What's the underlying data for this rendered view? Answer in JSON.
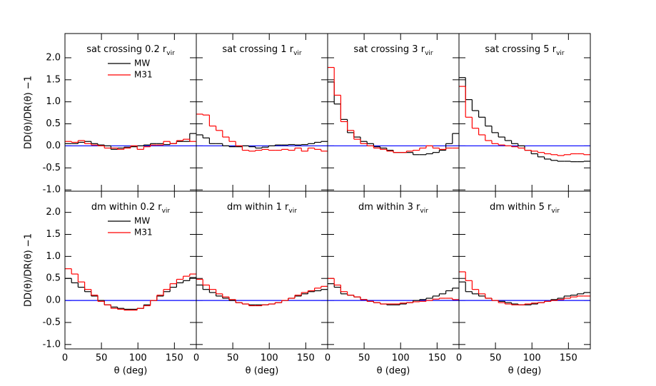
{
  "chart_data": [
    {
      "type": "histogram",
      "title": "sat crossing 0.2 r",
      "title_subscript": "vir",
      "y_label": "DD(θ)/DR(θ) −1",
      "bins": [
        0,
        9,
        18,
        27,
        36,
        45,
        54,
        63,
        72,
        81,
        90,
        99,
        108,
        117,
        126,
        135,
        144,
        153,
        162,
        171,
        180
      ],
      "series": [
        {
          "name": "MW",
          "color": "#000000",
          "values": [
            0.05,
            0.05,
            0.08,
            0.1,
            0.05,
            0.02,
            0,
            -0.08,
            -0.05,
            -0.03,
            -0.02,
            0,
            0.02,
            0.05,
            0.05,
            0.03,
            0.05,
            0.1,
            0.1,
            0.28
          ]
        },
        {
          "name": "M31",
          "color": "#ff0000",
          "values": [
            0.1,
            0.08,
            0.12,
            0.05,
            0.02,
            0,
            -0.05,
            -0.05,
            -0.08,
            -0.05,
            0,
            -0.08,
            -0.02,
            0.02,
            0.02,
            0.1,
            0.05,
            0.12,
            0.15,
            0.1
          ]
        }
      ],
      "reference_line": 0,
      "reference_color": "#0000ff",
      "xlim": [
        0,
        180
      ],
      "xticks": [
        0,
        50,
        100,
        150
      ],
      "ylim": [
        -1.03,
        2.55
      ],
      "yticks": [
        {
          "value": -1,
          "label": "-1.0"
        },
        {
          "value": -0.5,
          "label": "-0.5"
        },
        {
          "value": 0,
          "label": "0.0"
        },
        {
          "value": 0.5,
          "label": "0.5"
        },
        {
          "value": 1,
          "label": "1.0"
        },
        {
          "value": 1.5,
          "label": "1.5"
        },
        {
          "value": 2,
          "label": "2.0"
        }
      ]
    },
    {
      "type": "histogram",
      "title": "sat crossing 1 r",
      "title_subscript": "vir",
      "bins": [
        0,
        9,
        18,
        27,
        36,
        45,
        54,
        63,
        72,
        81,
        90,
        99,
        108,
        117,
        126,
        135,
        144,
        153,
        162,
        171,
        180
      ],
      "series": [
        {
          "color": "#000000",
          "values": [
            0.25,
            0.18,
            0.05,
            0.05,
            0,
            -0.02,
            -0.02,
            0,
            -0.02,
            -0.05,
            -0.03,
            0,
            0.02,
            0.02,
            0.03,
            0.02,
            0.03,
            0.05,
            0.08,
            0.1
          ]
        },
        {
          "color": "#ff0000",
          "values": [
            0.72,
            0.7,
            0.45,
            0.35,
            0.2,
            0.1,
            0,
            -0.1,
            -0.12,
            -0.1,
            -0.08,
            -0.1,
            -0.1,
            -0.08,
            -0.1,
            -0.05,
            -0.12,
            -0.05,
            -0.08,
            -0.12
          ]
        }
      ],
      "reference_line": 0,
      "reference_color": "#0000ff",
      "xlim": [
        0,
        180
      ],
      "xticks": [
        0,
        50,
        100,
        150
      ],
      "ylim": [
        -1.03,
        2.55
      ],
      "yticks": [
        -1,
        -0.5,
        0,
        0.5,
        1,
        1.5,
        2
      ]
    },
    {
      "type": "histogram",
      "title": "sat crossing 3 r",
      "title_subscript": "vir",
      "bins": [
        0,
        9,
        18,
        27,
        36,
        45,
        54,
        63,
        72,
        81,
        90,
        99,
        108,
        117,
        126,
        135,
        144,
        153,
        162,
        171,
        180
      ],
      "series": [
        {
          "color": "#000000",
          "values": [
            1.45,
            0.95,
            0.6,
            0.3,
            0.2,
            0.1,
            0.05,
            -0.02,
            -0.05,
            -0.1,
            -0.15,
            -0.15,
            -0.15,
            -0.2,
            -0.2,
            -0.18,
            -0.15,
            -0.1,
            0.05,
            0.28
          ]
        },
        {
          "color": "#ff0000",
          "values": [
            1.78,
            1.15,
            0.55,
            0.35,
            0.15,
            0.05,
            0,
            -0.05,
            -0.08,
            -0.12,
            -0.15,
            -0.15,
            -0.12,
            -0.1,
            -0.05,
            0,
            -0.05,
            -0.08,
            -0.05,
            -0.05
          ]
        }
      ],
      "reference_line": 0,
      "reference_color": "#0000ff",
      "xlim": [
        0,
        180
      ],
      "xticks": [
        0,
        50,
        100,
        150
      ],
      "ylim": [
        -1.03,
        2.55
      ],
      "yticks": [
        -1,
        -0.5,
        0,
        0.5,
        1,
        1.5,
        2
      ]
    },
    {
      "type": "histogram",
      "title": "sat crossing 5 r",
      "title_subscript": "vir",
      "bins": [
        0,
        9,
        18,
        27,
        36,
        45,
        54,
        63,
        72,
        81,
        90,
        99,
        108,
        117,
        126,
        135,
        144,
        153,
        162,
        171,
        180
      ],
      "series": [
        {
          "color": "#000000",
          "values": [
            1.55,
            1.05,
            0.8,
            0.65,
            0.45,
            0.3,
            0.2,
            0.12,
            0.05,
            0,
            -0.1,
            -0.18,
            -0.25,
            -0.3,
            -0.33,
            -0.35,
            -0.35,
            -0.36,
            -0.36,
            -0.35
          ]
        },
        {
          "color": "#ff0000",
          "values": [
            1.35,
            0.65,
            0.4,
            0.25,
            0.12,
            0.05,
            0.02,
            0,
            -0.02,
            -0.05,
            -0.1,
            -0.12,
            -0.15,
            -0.18,
            -0.2,
            -0.22,
            -0.2,
            -0.18,
            -0.18,
            -0.2
          ]
        }
      ],
      "reference_line": 0,
      "reference_color": "#0000ff",
      "xlim": [
        0,
        180
      ],
      "xticks": [
        0,
        50,
        100,
        150
      ],
      "ylim": [
        -1.03,
        2.55
      ],
      "yticks": [
        -1,
        -0.5,
        0,
        0.5,
        1,
        1.5,
        2
      ]
    },
    {
      "type": "histogram",
      "title": "dm within 0.2 r",
      "title_subscript": "vir",
      "y_label": "DD(θ)/DR(θ) −1",
      "x_label": "θ (deg)",
      "bins": [
        0,
        9,
        18,
        27,
        36,
        45,
        54,
        63,
        72,
        81,
        90,
        99,
        108,
        117,
        126,
        135,
        144,
        153,
        162,
        171,
        180
      ],
      "series": [
        {
          "name": "MW",
          "color": "#000000",
          "values": [
            0.5,
            0.4,
            0.3,
            0.2,
            0.1,
            0,
            -0.1,
            -0.15,
            -0.18,
            -0.2,
            -0.2,
            -0.18,
            -0.1,
            0,
            0.1,
            0.2,
            0.3,
            0.4,
            0.45,
            0.52
          ]
        },
        {
          "name": "M31",
          "color": "#ff0000",
          "values": [
            0.72,
            0.6,
            0.42,
            0.25,
            0.12,
            -0.02,
            -0.1,
            -0.18,
            -0.2,
            -0.22,
            -0.22,
            -0.18,
            -0.12,
            0,
            0.12,
            0.25,
            0.38,
            0.48,
            0.55,
            0.6
          ]
        }
      ],
      "reference_line": 0,
      "reference_color": "#0000ff",
      "xlim": [
        0,
        180
      ],
      "xticks": [
        0,
        50,
        100,
        150
      ],
      "ylim": [
        -1.1,
        2.48
      ],
      "yticks": [
        {
          "value": -1,
          "label": "-1.0"
        },
        {
          "value": -0.5,
          "label": "-0.5"
        },
        {
          "value": 0,
          "label": "0.0"
        },
        {
          "value": 0.5,
          "label": "0.5"
        },
        {
          "value": 1,
          "label": "1.0"
        },
        {
          "value": 1.5,
          "label": "1.5"
        },
        {
          "value": 2,
          "label": "2.0"
        }
      ]
    },
    {
      "type": "histogram",
      "title": "dm within 1 r",
      "title_subscript": "vir",
      "x_label": "θ (deg)",
      "bins": [
        0,
        9,
        18,
        27,
        36,
        45,
        54,
        63,
        72,
        81,
        90,
        99,
        108,
        117,
        126,
        135,
        144,
        153,
        162,
        171,
        180
      ],
      "series": [
        {
          "color": "#000000",
          "values": [
            0.35,
            0.25,
            0.18,
            0.1,
            0.05,
            0,
            -0.05,
            -0.08,
            -0.1,
            -0.1,
            -0.1,
            -0.08,
            -0.05,
            0,
            0.05,
            0.1,
            0.15,
            0.2,
            0.22,
            0.25
          ]
        },
        {
          "color": "#ff0000",
          "values": [
            0.48,
            0.35,
            0.25,
            0.15,
            0.08,
            0.02,
            -0.05,
            -0.08,
            -0.12,
            -0.12,
            -0.1,
            -0.08,
            -0.05,
            0,
            0.05,
            0.12,
            0.18,
            0.22,
            0.28,
            0.32
          ]
        }
      ],
      "reference_line": 0,
      "reference_color": "#0000ff",
      "xlim": [
        0,
        180
      ],
      "xticks": [
        0,
        50,
        100,
        150
      ],
      "ylim": [
        -1.1,
        2.48
      ],
      "yticks": [
        -1,
        -0.5,
        0,
        0.5,
        1,
        1.5,
        2
      ]
    },
    {
      "type": "histogram",
      "title": "dm within 3 r",
      "title_subscript": "vir",
      "x_label": "θ (deg)",
      "bins": [
        0,
        9,
        18,
        27,
        36,
        45,
        54,
        63,
        72,
        81,
        90,
        99,
        108,
        117,
        126,
        135,
        144,
        153,
        162,
        171,
        180
      ],
      "series": [
        {
          "color": "#000000",
          "values": [
            0.38,
            0.3,
            0.15,
            0.12,
            0.08,
            0.02,
            -0.02,
            -0.05,
            -0.08,
            -0.1,
            -0.1,
            -0.08,
            -0.05,
            0,
            0.02,
            0.05,
            0.1,
            0.15,
            0.22,
            0.28
          ]
        },
        {
          "color": "#ff0000",
          "values": [
            0.5,
            0.35,
            0.2,
            0.12,
            0.08,
            0.02,
            -0.02,
            -0.05,
            -0.08,
            -0.08,
            -0.08,
            -0.06,
            -0.05,
            -0.03,
            -0.02,
            0,
            0.03,
            0.05,
            0.05,
            0.02
          ]
        }
      ],
      "reference_line": 0,
      "reference_color": "#0000ff",
      "xlim": [
        0,
        180
      ],
      "xticks": [
        0,
        50,
        100,
        150
      ],
      "ylim": [
        -1.1,
        2.48
      ],
      "yticks": [
        -1,
        -0.5,
        0,
        0.5,
        1,
        1.5,
        2
      ]
    },
    {
      "type": "histogram",
      "title": "dm within 5 r",
      "title_subscript": "vir",
      "x_label": "θ (deg)",
      "bins": [
        0,
        9,
        18,
        27,
        36,
        45,
        54,
        63,
        72,
        81,
        90,
        99,
        108,
        117,
        126,
        135,
        144,
        153,
        162,
        171,
        180
      ],
      "series": [
        {
          "color": "#000000",
          "values": [
            0.42,
            0.2,
            0.15,
            0.1,
            0.05,
            0,
            -0.02,
            -0.05,
            -0.08,
            -0.1,
            -0.1,
            -0.08,
            -0.05,
            -0.02,
            0.02,
            0.05,
            0.1,
            0.12,
            0.15,
            0.18
          ]
        },
        {
          "color": "#ff0000",
          "values": [
            0.65,
            0.45,
            0.25,
            0.15,
            0.05,
            0,
            -0.05,
            -0.08,
            -0.1,
            -0.1,
            -0.08,
            -0.06,
            -0.05,
            -0.02,
            0,
            0.02,
            0.05,
            0.08,
            0.1,
            0.1
          ]
        }
      ],
      "reference_line": 0,
      "reference_color": "#0000ff",
      "xlim": [
        0,
        180
      ],
      "xticks": [
        0,
        50,
        100,
        150
      ],
      "ylim": [
        -1.1,
        2.48
      ],
      "yticks": [
        -1,
        -0.5,
        0,
        0.5,
        1,
        1.5,
        2
      ]
    }
  ]
}
